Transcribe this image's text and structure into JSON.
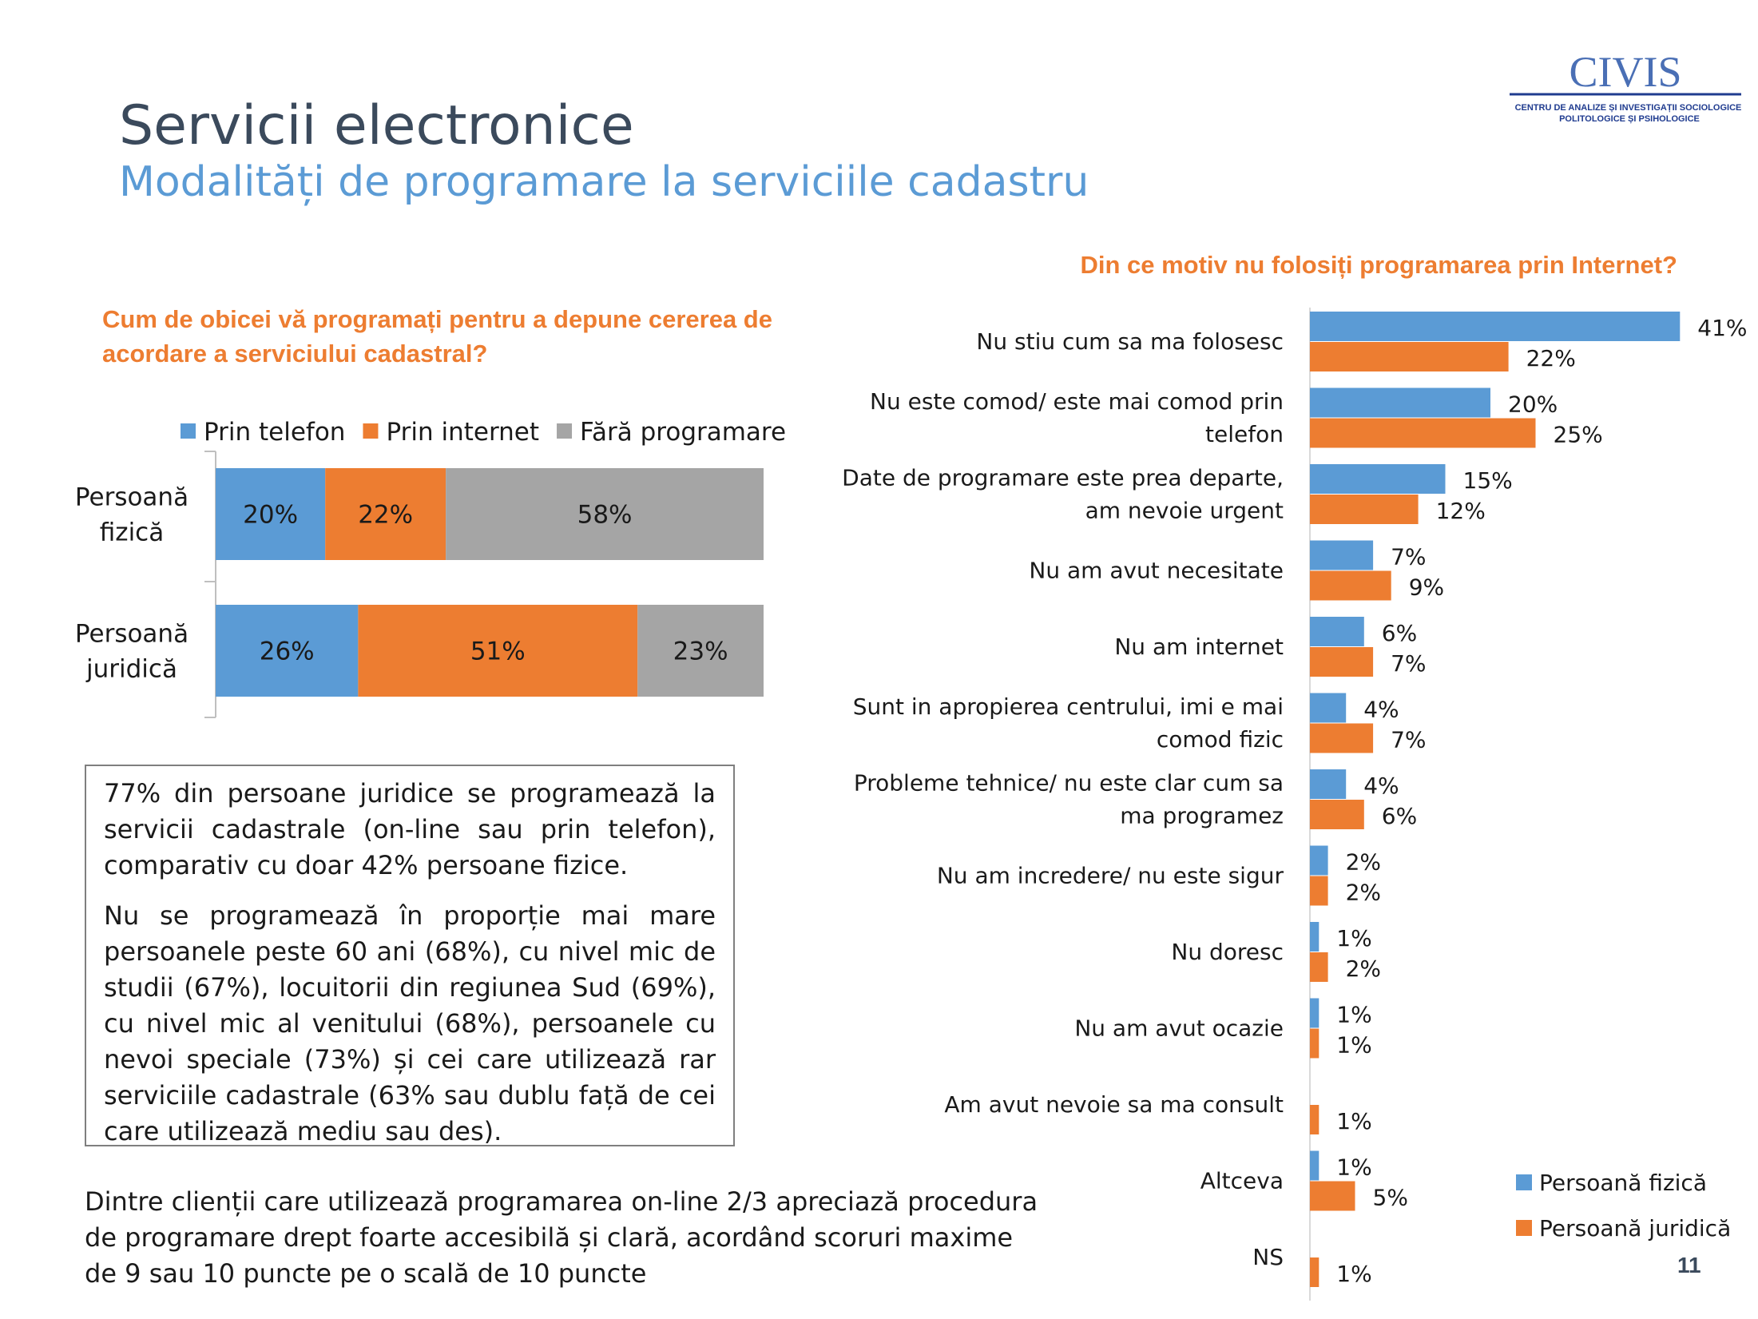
{
  "header": {
    "title": "Servicii electronice",
    "subtitle": "Modalități de programare la serviciile cadastru"
  },
  "logo": {
    "text": "CIVIS",
    "caption_line1": "CENTRU DE ANALIZE ȘI INVESTIGAȚII SOCIOLOGICE,",
    "caption_line2": "POLITOLOGICE ȘI PSIHOLOGICE"
  },
  "colors": {
    "blue": "#5b9bd5",
    "orange": "#ed7d31",
    "gray": "#a5a5a5"
  },
  "left_question": "Cum de obicei vă programați pentru a depune cererea de acordare a serviciului cadastral?",
  "right_question": "Din ce motiv nu folosiți programarea prin Internet?",
  "chart_data": [
    {
      "type": "bar",
      "orientation": "horizontal",
      "stacked": true,
      "legend_position": "top",
      "categories": [
        [
          "Persoană",
          "fizică"
        ],
        [
          "Persoană",
          "juridică"
        ]
      ],
      "series": [
        {
          "name": "Prin telefon",
          "values": [
            20,
            26
          ],
          "labels": [
            "20%",
            "26%"
          ]
        },
        {
          "name": "Prin internet",
          "values": [
            22,
            51
          ],
          "labels": [
            "22%",
            "51%"
          ]
        },
        {
          "name": "Fără programare",
          "values": [
            58,
            23
          ],
          "labels": [
            "58%",
            "23%"
          ]
        }
      ],
      "xlim": [
        0,
        100
      ]
    },
    {
      "type": "bar",
      "orientation": "horizontal",
      "legend_position": "bottom-right",
      "categories": [
        [
          "Nu stiu cum sa ma folosesc"
        ],
        [
          "Nu este comod/ este mai comod prin",
          "telefon"
        ],
        [
          "Date de programare este prea departe,",
          "am nevoie urgent"
        ],
        [
          "Nu am avut necesitate"
        ],
        [
          "Nu am internet"
        ],
        [
          "Sunt in apropierea centrului, imi e mai",
          "comod fizic"
        ],
        [
          "Probleme tehnice/ nu este clar cum sa",
          "ma programez"
        ],
        [
          "Nu am incredere/ nu este sigur"
        ],
        [
          "Nu doresc"
        ],
        [
          "Nu am avut ocazie"
        ],
        [
          "Am avut nevoie sa ma consult"
        ],
        [
          "Altceva"
        ],
        [
          "NS"
        ]
      ],
      "series": [
        {
          "name": "Persoană fizică",
          "values": [
            41,
            20,
            15,
            7,
            6,
            4,
            4,
            2,
            1,
            1,
            0,
            1,
            0
          ],
          "labels": [
            "41%",
            "20%",
            "15%",
            "7%",
            "6%",
            "4%",
            "4%",
            "2%",
            "1%",
            "1%",
            "",
            "1%",
            ""
          ]
        },
        {
          "name": "Persoană juridică",
          "values": [
            22,
            25,
            12,
            9,
            7,
            7,
            6,
            2,
            2,
            1,
            1,
            5,
            1
          ],
          "labels": [
            "22%",
            "25%",
            "12%",
            "9%",
            "7%",
            "7%",
            "6%",
            "2%",
            "2%",
            "1%",
            "1%",
            "5%",
            "1%"
          ]
        }
      ]
    }
  ],
  "textbox": {
    "paragraph1": "77% din persoane juridice se programează la servicii cadastrale (on-line sau prin telefon), comparativ cu doar 42% persoane fizice.",
    "paragraph2": "Nu se programează în proporție mai mare persoanele peste 60 ani (68%), cu nivel mic de studii (67%), locuitorii din regiunea Sud (69%), cu nivel mic al venitului (68%), persoanele cu nevoi speciale (73%) și cei care utilizează rar serviciile cadastrale (63% sau dublu față de cei care utilizează mediu sau des)."
  },
  "bottom_note": "Dintre clienții care utilizează programarea on-line 2/3 apreciază procedura de programare drept foarte accesibilă și clară, acordând scoruri maxime de 9 sau 10 puncte pe o scală de 10 puncte",
  "page_number": "11"
}
